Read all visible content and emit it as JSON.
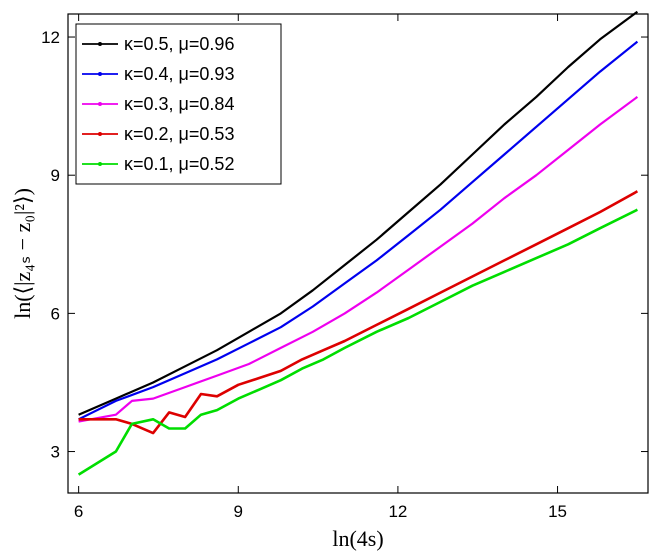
{
  "chart_data": {
    "type": "line",
    "title": "",
    "xlabel": "ln(4s)",
    "ylabel": "ln(⟨|z₄ₛ − z₀|²⟩)",
    "xlim": [
      5.8,
      16.7
    ],
    "ylim": [
      2.1,
      12.5
    ],
    "xticks": [
      6,
      9,
      12,
      15
    ],
    "yticks": [
      3,
      6,
      9,
      12
    ],
    "grid": false,
    "legend_position": "top-left",
    "series": [
      {
        "name": "κ=0.5, μ=0.96",
        "color": "#000000",
        "x": [
          6.0,
          6.7,
          7.4,
          8.0,
          8.6,
          9.2,
          9.8,
          10.4,
          11.0,
          11.6,
          12.2,
          12.8,
          13.4,
          14.0,
          14.6,
          15.2,
          15.8,
          16.5
        ],
        "y": [
          3.8,
          4.15,
          4.5,
          4.85,
          5.2,
          5.6,
          6.0,
          6.5,
          7.05,
          7.6,
          8.2,
          8.8,
          9.45,
          10.1,
          10.7,
          11.35,
          11.95,
          12.55
        ]
      },
      {
        "name": "κ=0.4, μ=0.93",
        "color": "#0000ee",
        "x": [
          6.0,
          6.7,
          7.4,
          8.0,
          8.6,
          9.2,
          9.8,
          10.4,
          11.0,
          11.6,
          12.2,
          12.8,
          13.4,
          14.0,
          14.6,
          15.2,
          15.8,
          16.5
        ],
        "y": [
          3.7,
          4.1,
          4.4,
          4.7,
          5.0,
          5.35,
          5.7,
          6.15,
          6.65,
          7.15,
          7.7,
          8.25,
          8.85,
          9.45,
          10.05,
          10.65,
          11.25,
          11.9
        ]
      },
      {
        "name": "κ=0.3, μ=0.84",
        "color": "#ee00ee",
        "x": [
          6.0,
          6.7,
          7.0,
          7.4,
          8.0,
          8.6,
          9.2,
          9.8,
          10.4,
          11.0,
          11.6,
          12.2,
          12.8,
          13.4,
          14.0,
          14.6,
          15.2,
          15.8,
          16.5
        ],
        "y": [
          3.65,
          3.8,
          4.1,
          4.15,
          4.4,
          4.65,
          4.9,
          5.25,
          5.6,
          6.0,
          6.45,
          6.95,
          7.45,
          7.95,
          8.5,
          9.0,
          9.55,
          10.1,
          10.7
        ]
      },
      {
        "name": "κ=0.2, μ=0.53",
        "color": "#dd0000",
        "x": [
          6.0,
          6.7,
          7.0,
          7.4,
          7.7,
          8.0,
          8.3,
          8.6,
          9.0,
          9.4,
          9.8,
          10.2,
          10.6,
          11.0,
          11.6,
          12.2,
          12.8,
          13.4,
          14.0,
          14.6,
          15.2,
          15.8,
          16.5
        ],
        "y": [
          3.7,
          3.7,
          3.6,
          3.4,
          3.85,
          3.75,
          4.25,
          4.2,
          4.45,
          4.6,
          4.75,
          5.0,
          5.2,
          5.4,
          5.75,
          6.1,
          6.45,
          6.8,
          7.15,
          7.5,
          7.85,
          8.2,
          8.65
        ]
      },
      {
        "name": "κ=0.1, μ=0.52",
        "color": "#00dd00",
        "x": [
          6.0,
          6.7,
          7.0,
          7.4,
          7.7,
          8.0,
          8.3,
          8.6,
          9.0,
          9.4,
          9.8,
          10.2,
          10.6,
          11.0,
          11.6,
          12.2,
          12.8,
          13.4,
          14.0,
          14.6,
          15.2,
          15.8,
          16.5
        ],
        "y": [
          2.5,
          3.0,
          3.6,
          3.7,
          3.5,
          3.5,
          3.8,
          3.9,
          4.15,
          4.35,
          4.55,
          4.8,
          5.0,
          5.25,
          5.6,
          5.9,
          6.25,
          6.6,
          6.9,
          7.2,
          7.5,
          7.85,
          8.25
        ]
      }
    ]
  }
}
